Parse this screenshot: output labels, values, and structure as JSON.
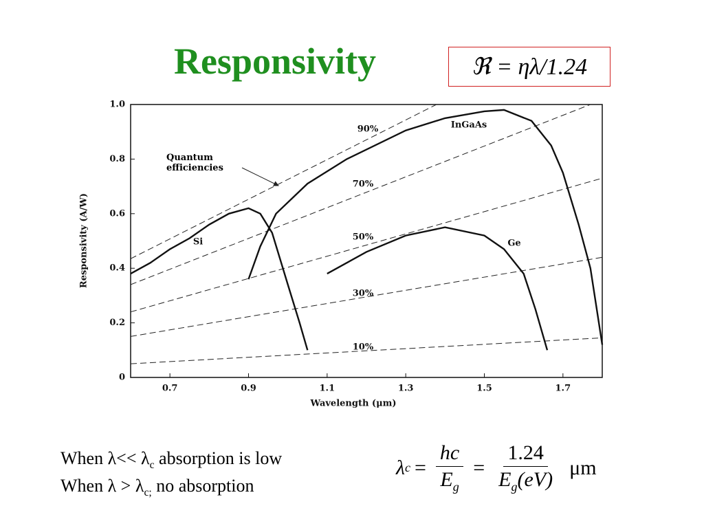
{
  "slide": {
    "title": "Responsivity",
    "formula": "ℜ = ηλ/1.24",
    "notes": [
      {
        "before": "When λ<< λ",
        "sub": "c",
        "after": " absorption is low"
      },
      {
        "before": "When λ > λ",
        "sub": "c;",
        "after": " no absorption"
      }
    ],
    "equation": {
      "lhs": "λ",
      "lhs_sub": "c",
      "eq1": "=",
      "num1": "hc",
      "den1": "E",
      "den1_sub": "g",
      "eq2": "=",
      "num2": "1.24",
      "den2": "E",
      "den2_sub": "g",
      "den2_tail": "(eV)",
      "unit": "μm"
    }
  },
  "chart_data": {
    "type": "line",
    "ylabel": "Responsivity (A/W)",
    "xlabel": "Wavelength (μm)",
    "annotation": "Quantum efficiencies",
    "xlim": [
      0.6,
      1.8
    ],
    "ylim": [
      0,
      1
    ],
    "xticks": [
      0.7,
      0.9,
      1.1,
      1.3,
      1.5,
      1.7
    ],
    "yticks": [
      0,
      0.2,
      0.4,
      0.6,
      0.8,
      {
        "value": 1,
        "label": "1.0"
      }
    ],
    "series": [
      {
        "name": "90%",
        "color": "#222222",
        "dashed": true,
        "x": [
          0.6,
          1.378
        ],
        "values": [
          0.435,
          1.0
        ]
      },
      {
        "name": "70%",
        "color": "#222222",
        "dashed": true,
        "x": [
          0.6,
          1.77
        ],
        "values": [
          0.34,
          1.0
        ]
      },
      {
        "name": "50%",
        "color": "#222222",
        "dashed": true,
        "x": [
          0.6,
          1.8
        ],
        "values": [
          0.24,
          0.73
        ]
      },
      {
        "name": "30%",
        "color": "#222222",
        "dashed": true,
        "x": [
          0.6,
          1.8
        ],
        "values": [
          0.15,
          0.44
        ]
      },
      {
        "name": "10%",
        "color": "#222222",
        "dashed": true,
        "x": [
          0.6,
          1.8
        ],
        "values": [
          0.05,
          0.145
        ]
      },
      {
        "name": "Si",
        "color": "#111111",
        "dashed": false,
        "x": [
          0.6,
          0.65,
          0.7,
          0.75,
          0.8,
          0.85,
          0.9,
          0.93,
          0.96,
          1.0,
          1.03,
          1.05
        ],
        "values": [
          0.38,
          0.42,
          0.47,
          0.51,
          0.56,
          0.6,
          0.62,
          0.6,
          0.53,
          0.34,
          0.2,
          0.1
        ]
      },
      {
        "name": "InGaAs",
        "color": "#111111",
        "dashed": false,
        "x": [
          0.9,
          0.93,
          0.97,
          1.05,
          1.15,
          1.3,
          1.4,
          1.5,
          1.55,
          1.62,
          1.67,
          1.7,
          1.74,
          1.77,
          1.8
        ],
        "values": [
          0.36,
          0.48,
          0.6,
          0.71,
          0.8,
          0.905,
          0.95,
          0.975,
          0.98,
          0.94,
          0.85,
          0.75,
          0.56,
          0.4,
          0.12
        ]
      },
      {
        "name": "Ge",
        "color": "#111111",
        "dashed": false,
        "x": [
          1.1,
          1.2,
          1.3,
          1.4,
          1.5,
          1.55,
          1.6,
          1.63,
          1.66
        ],
        "values": [
          0.38,
          0.46,
          0.52,
          0.55,
          0.52,
          0.47,
          0.38,
          0.25,
          0.1
        ]
      }
    ]
  }
}
